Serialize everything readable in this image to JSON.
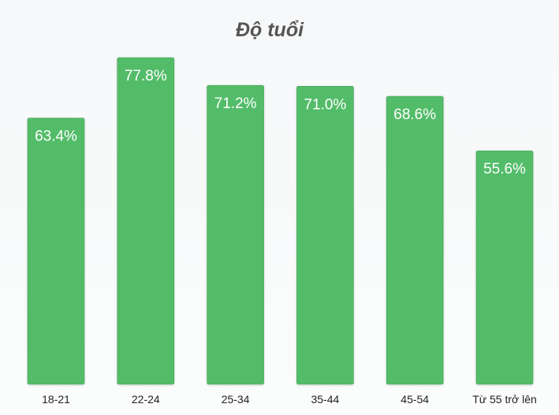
{
  "chart_data": {
    "type": "bar",
    "title": "Độ tuổi",
    "categories": [
      "18-21",
      "22-24",
      "25-34",
      "35-44",
      "45-54",
      "Từ 55 trở lên"
    ],
    "values": [
      63.4,
      77.8,
      71.2,
      71.0,
      68.6,
      55.6
    ],
    "value_labels": [
      "63.4%",
      "77.8%",
      "71.2%",
      "71.0%",
      "68.6%",
      "55.6%"
    ],
    "unit": "%",
    "xlabel": "",
    "ylabel": "",
    "ylim": [
      0,
      100
    ],
    "grid": false,
    "legend": "none",
    "bar_color": "#52bc69",
    "bar_edge_color": "#45a65b"
  }
}
